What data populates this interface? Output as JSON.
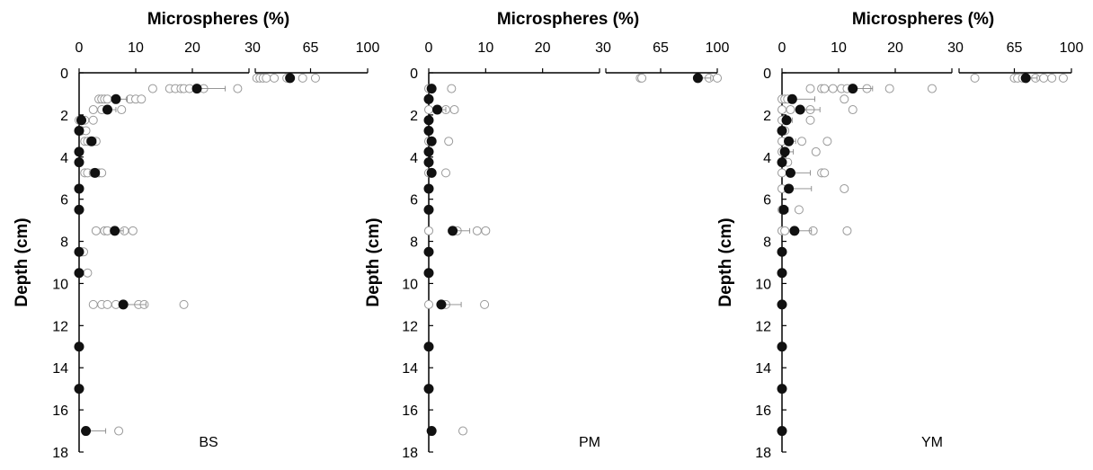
{
  "chart_data": [
    {
      "type": "scatter",
      "title": "Microspheres (%)",
      "xlabel": "Microspheres (%)",
      "ylabel": "Depth (cm)",
      "panel_label": "BS",
      "x_axis_segments": [
        {
          "range": [
            0,
            30
          ],
          "ticks": [
            "0",
            "10",
            "20",
            "30"
          ]
        },
        {
          "range": [
            30,
            100
          ],
          "ticks": [
            "65",
            "100"
          ]
        }
      ],
      "y_ticks": [
        "0",
        "2",
        "4",
        "6",
        "8",
        "10",
        "12",
        "14",
        "16",
        "18"
      ],
      "ylim": [
        0,
        18
      ],
      "y_inverted": true,
      "legend": "none",
      "grid": false,
      "mean": [
        {
          "depth": 0.25,
          "value": 52,
          "err": 2
        },
        {
          "depth": 0.75,
          "value": 20.8,
          "err": 5
        },
        {
          "depth": 1.25,
          "value": 6.5,
          "err": 2
        },
        {
          "depth": 1.75,
          "value": 5,
          "err": 1.5
        },
        {
          "depth": 2.25,
          "value": 0.4,
          "err": 0.5
        },
        {
          "depth": 2.75,
          "value": 0,
          "err": 0.3
        },
        {
          "depth": 3.25,
          "value": 2.2,
          "err": 0.8
        },
        {
          "depth": 3.75,
          "value": 0,
          "err": 0.2
        },
        {
          "depth": 4.25,
          "value": 0,
          "err": 0.2
        },
        {
          "depth": 4.75,
          "value": 2.8,
          "err": 0.8
        },
        {
          "depth": 5.5,
          "value": 0,
          "err": 0.2
        },
        {
          "depth": 6.5,
          "value": 0,
          "err": 0.2
        },
        {
          "depth": 7.5,
          "value": 6.3,
          "err": 1.5
        },
        {
          "depth": 8.5,
          "value": 0,
          "err": 0.3
        },
        {
          "depth": 9.5,
          "value": 0,
          "err": 0.3
        },
        {
          "depth": 11,
          "value": 7.8,
          "err": 4
        },
        {
          "depth": 13,
          "value": 0,
          "err": 0.1
        },
        {
          "depth": 15,
          "value": 0,
          "err": 0.1
        },
        {
          "depth": 17,
          "value": 1.2,
          "err": 3.5
        }
      ],
      "replicates": [
        {
          "depth": 0.25,
          "values": [
            31,
            33,
            35,
            37,
            42,
            50,
            60,
            68
          ]
        },
        {
          "depth": 0.75,
          "values": [
            13,
            16,
            17,
            18,
            18.5,
            19.5,
            22,
            28
          ]
        },
        {
          "depth": 1.25,
          "values": [
            3.5,
            4,
            4.5,
            5,
            9,
            10,
            11
          ]
        },
        {
          "depth": 1.75,
          "values": [
            2.5,
            4,
            5,
            7.5
          ]
        },
        {
          "depth": 2.25,
          "values": [
            0,
            0.5,
            1,
            2.5
          ]
        },
        {
          "depth": 2.75,
          "values": [
            0,
            0.5,
            1.2
          ]
        },
        {
          "depth": 3.25,
          "values": [
            1,
            1.5,
            2,
            2.5,
            3
          ]
        },
        {
          "depth": 4.75,
          "values": [
            1,
            1.5,
            2.5,
            3.5,
            4
          ]
        },
        {
          "depth": 7.5,
          "values": [
            3,
            4.5,
            5,
            8,
            9.5
          ]
        },
        {
          "depth": 8.5,
          "values": [
            0.5,
            0.8
          ]
        },
        {
          "depth": 9.5,
          "values": [
            0,
            1.5
          ]
        },
        {
          "depth": 11,
          "values": [
            2.5,
            4,
            5,
            6.5,
            10.5,
            11.5,
            18.5
          ]
        },
        {
          "depth": 17,
          "values": [
            7
          ]
        }
      ]
    },
    {
      "type": "scatter",
      "title": "Microspheres (%)",
      "xlabel": "Microspheres (%)",
      "ylabel": "Depth (cm)",
      "panel_label": "PM",
      "x_axis_segments": [
        {
          "range": [
            0,
            30
          ],
          "ticks": [
            "0",
            "10",
            "20",
            "30"
          ]
        },
        {
          "range": [
            30,
            100
          ],
          "ticks": [
            "65",
            "100"
          ]
        }
      ],
      "y_ticks": [
        "0",
        "2",
        "4",
        "6",
        "8",
        "10",
        "12",
        "14",
        "16",
        "18"
      ],
      "ylim": [
        0,
        18
      ],
      "y_inverted": true,
      "legend": "none",
      "grid": false,
      "mean": [
        {
          "depth": 0.25,
          "value": 88,
          "err": 8
        },
        {
          "depth": 0.75,
          "value": 0.5,
          "err": 0.5
        },
        {
          "depth": 1.25,
          "value": 0,
          "err": 0.2
        },
        {
          "depth": 1.75,
          "value": 1.5,
          "err": 1.5
        },
        {
          "depth": 2.25,
          "value": 0,
          "err": 0.2
        },
        {
          "depth": 2.75,
          "value": 0,
          "err": 0.2
        },
        {
          "depth": 3.25,
          "value": 0.5,
          "err": 0.5
        },
        {
          "depth": 3.75,
          "value": 0,
          "err": 0.2
        },
        {
          "depth": 4.25,
          "value": 0,
          "err": 0.2
        },
        {
          "depth": 4.75,
          "value": 0.5,
          "err": 0.7
        },
        {
          "depth": 5.5,
          "value": 0,
          "err": 0.1
        },
        {
          "depth": 6.5,
          "value": 0,
          "err": 0.1
        },
        {
          "depth": 7.5,
          "value": 4.2,
          "err": 3
        },
        {
          "depth": 8.5,
          "value": 0,
          "err": 0.1
        },
        {
          "depth": 9.5,
          "value": 0,
          "err": 0.1
        },
        {
          "depth": 11,
          "value": 2.2,
          "err": 3.5
        },
        {
          "depth": 13,
          "value": 0,
          "err": 0.1
        },
        {
          "depth": 15,
          "value": 0,
          "err": 0.1
        },
        {
          "depth": 17,
          "value": 0.5,
          "err": 0.2
        }
      ],
      "replicates": [
        {
          "depth": 0.25,
          "values": [
            52,
            53,
            95,
            100
          ]
        },
        {
          "depth": 0.75,
          "values": [
            0,
            4
          ]
        },
        {
          "depth": 1.75,
          "values": [
            0,
            3,
            4.5
          ]
        },
        {
          "depth": 3.25,
          "values": [
            0,
            3.5
          ]
        },
        {
          "depth": 4.75,
          "values": [
            0,
            3
          ]
        },
        {
          "depth": 7.5,
          "values": [
            0,
            5,
            8.5,
            10
          ]
        },
        {
          "depth": 11,
          "values": [
            0,
            3,
            9.8
          ]
        },
        {
          "depth": 17,
          "values": [
            6
          ]
        }
      ]
    },
    {
      "type": "scatter",
      "title": "Microspheres (%)",
      "xlabel": "Microspheres (%)",
      "ylabel": "Depth (cm)",
      "panel_label": "YM",
      "x_axis_segments": [
        {
          "range": [
            0,
            30
          ],
          "ticks": [
            "0",
            "10",
            "20",
            "30"
          ]
        },
        {
          "range": [
            30,
            100
          ],
          "ticks": [
            "65",
            "100"
          ]
        }
      ],
      "y_ticks": [
        "0",
        "2",
        "4",
        "6",
        "8",
        "10",
        "12",
        "14",
        "16",
        "18"
      ],
      "ylim": [
        0,
        18
      ],
      "y_inverted": true,
      "legend": "none",
      "grid": false,
      "mean": [
        {
          "depth": 0.25,
          "value": 72,
          "err": 7
        },
        {
          "depth": 0.75,
          "value": 12.5,
          "err": 3.5
        },
        {
          "depth": 1.25,
          "value": 1.8,
          "err": 4
        },
        {
          "depth": 1.75,
          "value": 3.2,
          "err": 3.5
        },
        {
          "depth": 2.25,
          "value": 0.8,
          "err": 1
        },
        {
          "depth": 2.75,
          "value": 0,
          "err": 0.3
        },
        {
          "depth": 3.25,
          "value": 1.2,
          "err": 1.2
        },
        {
          "depth": 3.75,
          "value": 0.5,
          "err": 1.5
        },
        {
          "depth": 4.25,
          "value": 0,
          "err": 0.4
        },
        {
          "depth": 4.75,
          "value": 1.5,
          "err": 3.5
        },
        {
          "depth": 5.5,
          "value": 1.2,
          "err": 4
        },
        {
          "depth": 6.5,
          "value": 0.3,
          "err": 0.8
        },
        {
          "depth": 7.5,
          "value": 2.2,
          "err": 3
        },
        {
          "depth": 8.5,
          "value": 0,
          "err": 0.5
        },
        {
          "depth": 9.5,
          "value": 0,
          "err": 0.6
        },
        {
          "depth": 11,
          "value": 0,
          "err": 0.3
        },
        {
          "depth": 13,
          "value": 0,
          "err": 0.6
        },
        {
          "depth": 15,
          "value": 0,
          "err": 0.1
        },
        {
          "depth": 17,
          "value": 0,
          "err": 0.1
        }
      ],
      "replicates": [
        {
          "depth": 0.25,
          "values": [
            40,
            65,
            67,
            70,
            78,
            83,
            88,
            95
          ]
        },
        {
          "depth": 0.75,
          "values": [
            5,
            7,
            7.5,
            9,
            10.5,
            11.5,
            15,
            19,
            26.5
          ]
        },
        {
          "depth": 1.25,
          "values": [
            0,
            0.5,
            1,
            11
          ]
        },
        {
          "depth": 1.75,
          "values": [
            0,
            1.5,
            5,
            12.5
          ]
        },
        {
          "depth": 2.25,
          "values": [
            0,
            5
          ]
        },
        {
          "depth": 2.75,
          "values": [
            0,
            0.5
          ]
        },
        {
          "depth": 3.25,
          "values": [
            0,
            3.5,
            8
          ]
        },
        {
          "depth": 3.75,
          "values": [
            0,
            6
          ]
        },
        {
          "depth": 4.25,
          "values": [
            0,
            1
          ]
        },
        {
          "depth": 4.75,
          "values": [
            0,
            7,
            7.5
          ]
        },
        {
          "depth": 5.5,
          "values": [
            0,
            11
          ]
        },
        {
          "depth": 6.5,
          "values": [
            0,
            3
          ]
        },
        {
          "depth": 7.5,
          "values": [
            0,
            0.5,
            5.5,
            11.5
          ]
        }
      ]
    }
  ]
}
